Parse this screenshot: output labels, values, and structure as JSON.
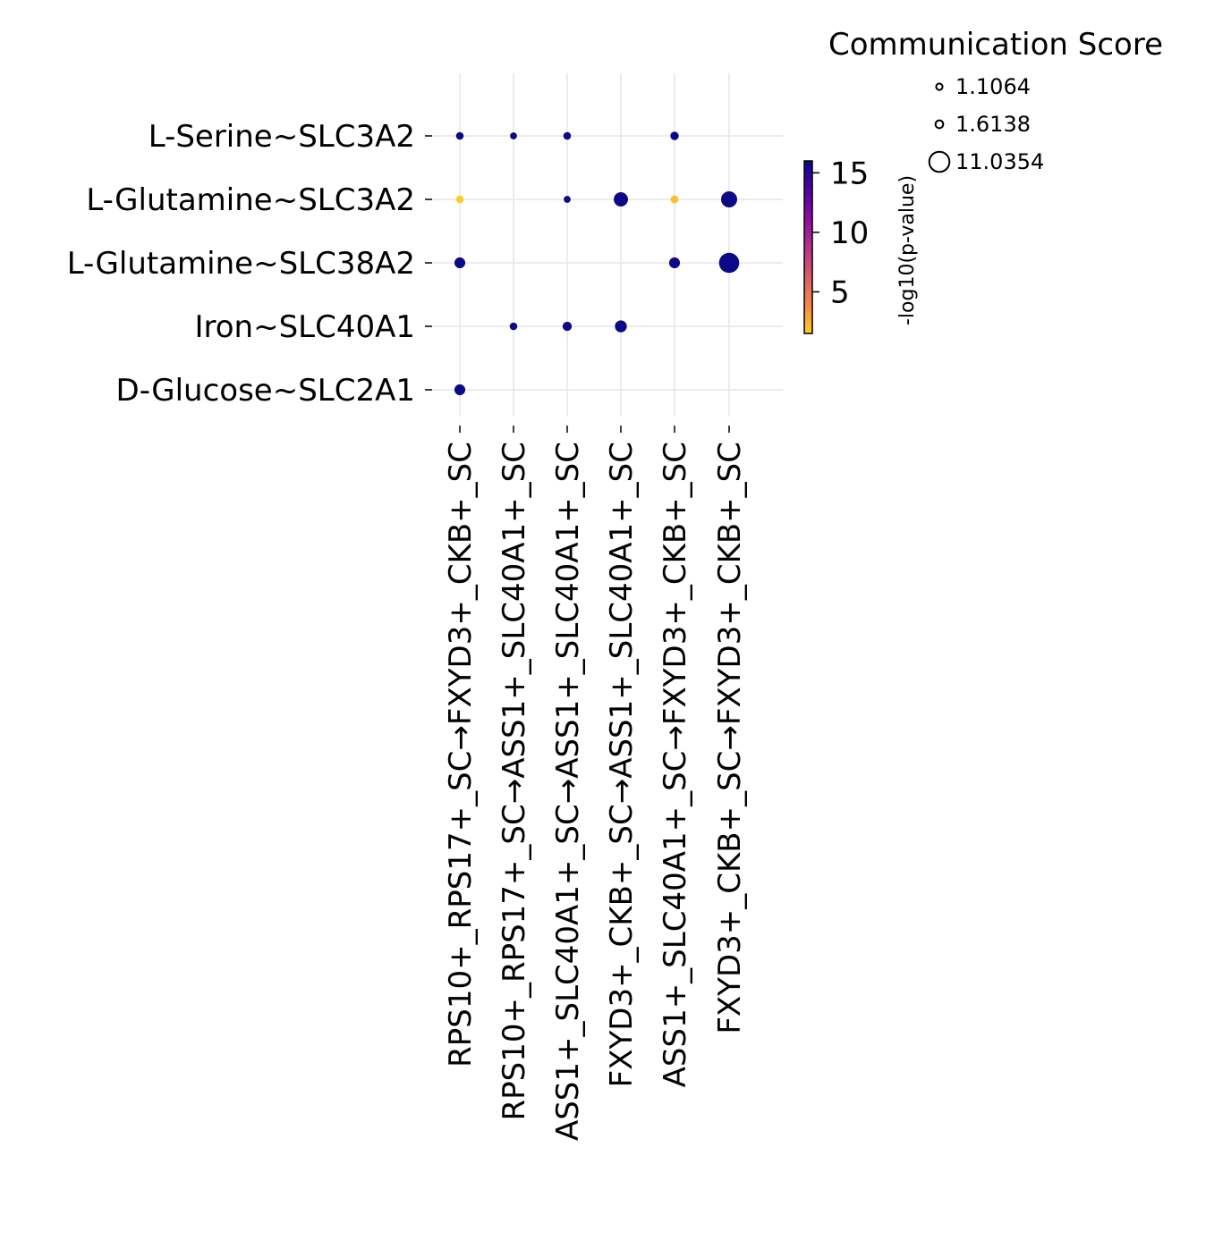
{
  "chart_data": {
    "type": "scatter",
    "y_categories": [
      "L-Serine~SLC3A2",
      "L-Glutamine~SLC3A2",
      "L-Glutamine~SLC38A2",
      "Iron~SLC40A1",
      "D-Glucose~SLC2A1"
    ],
    "x_categories": [
      "RPS10+_RPS17+_SC→FXYD3+_CKB+_SC",
      "RPS10+_RPS17+_SC→ASS1+_SLC40A1+_SC",
      "ASS1+_SLC40A1+_SC→ASS1+_SLC40A1+_SC",
      "FXYD3+_CKB+_SC→ASS1+_SLC40A1+_SC",
      "ASS1+_SLC40A1+_SC→FXYD3+_CKB+_SC",
      "FXYD3+_CKB+_SC→FXYD3+_CKB+_SC"
    ],
    "points": [
      {
        "x": "RPS10+_RPS17+_SC→FXYD3+_CKB+_SC",
        "y": "L-Serine~SLC3A2",
        "score": 1.6,
        "neglog10p": 16
      },
      {
        "x": "RPS10+_RPS17+_SC→ASS1+_SLC40A1+_SC",
        "y": "L-Serine~SLC3A2",
        "score": 1.3,
        "neglog10p": 16
      },
      {
        "x": "ASS1+_SLC40A1+_SC→ASS1+_SLC40A1+_SC",
        "y": "L-Serine~SLC3A2",
        "score": 1.6,
        "neglog10p": 16
      },
      {
        "x": "ASS1+_SLC40A1+_SC→FXYD3+_CKB+_SC",
        "y": "L-Serine~SLC3A2",
        "score": 1.9,
        "neglog10p": 16
      },
      {
        "x": "RPS10+_RPS17+_SC→FXYD3+_CKB+_SC",
        "y": "L-Glutamine~SLC3A2",
        "score": 1.6,
        "neglog10p": 1.5
      },
      {
        "x": "ASS1+_SLC40A1+_SC→ASS1+_SLC40A1+_SC",
        "y": "L-Glutamine~SLC3A2",
        "score": 1.3,
        "neglog10p": 16
      },
      {
        "x": "FXYD3+_CKB+_SC→ASS1+_SLC40A1+_SC",
        "y": "L-Glutamine~SLC3A2",
        "score": 5.5,
        "neglog10p": 16
      },
      {
        "x": "ASS1+_SLC40A1+_SC→FXYD3+_CKB+_SC",
        "y": "L-Glutamine~SLC3A2",
        "score": 1.7,
        "neglog10p": 2.0
      },
      {
        "x": "FXYD3+_CKB+_SC→FXYD3+_CKB+_SC",
        "y": "L-Glutamine~SLC3A2",
        "score": 7.0,
        "neglog10p": 16
      },
      {
        "x": "RPS10+_RPS17+_SC→FXYD3+_CKB+_SC",
        "y": "L-Glutamine~SLC38A2",
        "score": 3.2,
        "neglog10p": 16
      },
      {
        "x": "ASS1+_SLC40A1+_SC→FXYD3+_CKB+_SC",
        "y": "L-Glutamine~SLC38A2",
        "score": 3.2,
        "neglog10p": 16
      },
      {
        "x": "FXYD3+_CKB+_SC→FXYD3+_CKB+_SC",
        "y": "L-Glutamine~SLC38A2",
        "score": 11.0354,
        "neglog10p": 16
      },
      {
        "x": "RPS10+_RPS17+_SC→ASS1+_SLC40A1+_SC",
        "y": "Iron~SLC40A1",
        "score": 1.6,
        "neglog10p": 16
      },
      {
        "x": "ASS1+_SLC40A1+_SC→ASS1+_SLC40A1+_SC",
        "y": "Iron~SLC40A1",
        "score": 2.3,
        "neglog10p": 16
      },
      {
        "x": "FXYD3+_CKB+_SC→ASS1+_SLC40A1+_SC",
        "y": "Iron~SLC40A1",
        "score": 3.8,
        "neglog10p": 16
      },
      {
        "x": "RPS10+_RPS17+_SC→FXYD3+_CKB+_SC",
        "y": "D-Glucose~SLC2A1",
        "score": 3.2,
        "neglog10p": 16
      }
    ],
    "size_legend": {
      "title": "Communication Score",
      "entries": [
        {
          "label": "1.1064",
          "value": 1.1064
        },
        {
          "label": "1.6138",
          "value": 1.6138
        },
        {
          "label": "11.0354",
          "value": 11.0354
        }
      ]
    },
    "colorbar": {
      "label": "-log10(p-value)",
      "colormap": "plasma_r",
      "range": [
        1.5,
        16
      ],
      "ticks": [
        5,
        10,
        15
      ],
      "tick_labels": [
        "5",
        "10",
        "15"
      ],
      "colors": [
        "#fcce25",
        "#f48849",
        "#db5c68",
        "#b83289",
        "#8b0aa5",
        "#5302a3",
        "#0d0887"
      ]
    },
    "grid": true
  }
}
